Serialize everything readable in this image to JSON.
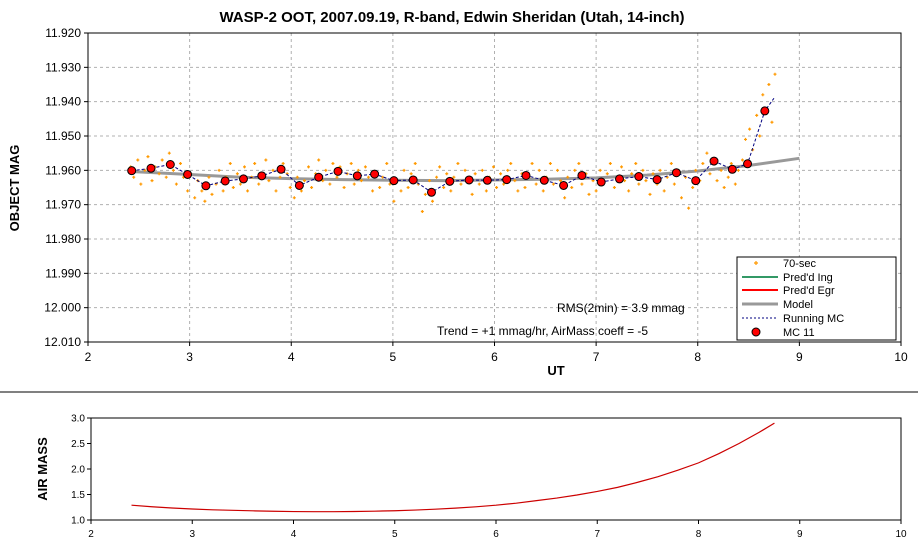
{
  "chart_data": [
    {
      "type": "scatter",
      "title": "WASP-2 OOT, 2007.09.19, R-band, Edwin Sheridan (Utah, 14-inch)",
      "xlabel": "UT",
      "ylabel": "OBJECT MAG",
      "xlim": [
        2,
        10
      ],
      "ylim": [
        11.92,
        12.01
      ],
      "y_inverted": true,
      "x_ticks": [
        "2",
        "3",
        "4",
        "5",
        "6",
        "7",
        "8",
        "9",
        "10"
      ],
      "y_ticks": [
        "11.920",
        "11.930",
        "11.940",
        "11.950",
        "11.960",
        "11.970",
        "11.980",
        "11.990",
        "12.000",
        "12.010"
      ],
      "grid": true,
      "legend_position": "bottom-right",
      "legend": [
        "70-sec",
        "Pred'd Ing",
        "Pred'd Egr",
        "Model",
        "Running MC",
        "MC 11"
      ],
      "annotations": [
        "RMS(2min) = 3.9 mmag",
        "Trend = +1 mmag/hr, AirMass coeff = -5"
      ],
      "colors": {
        "70-sec": "#ff9900",
        "Pred'd Ing": "#339966",
        "Pred'd Egr": "#ff0000",
        "Model": "#999999",
        "Running MC": "#000080",
        "MC 11": "#ff0000"
      },
      "series": [
        {
          "name": "MC 11",
          "x": [
            2.43,
            2.62,
            2.81,
            2.98,
            3.16,
            3.35,
            3.53,
            3.71,
            3.9,
            4.08,
            4.27,
            4.46,
            4.65,
            4.82,
            5.01,
            5.2,
            5.38,
            5.56,
            5.75,
            5.93,
            6.12,
            6.31,
            6.49,
            6.68,
            6.86,
            7.05,
            7.23,
            7.42,
            7.6,
            7.79,
            7.98,
            8.16,
            8.34,
            8.49,
            8.66
          ],
          "y": [
            11.9601,
            11.9594,
            11.9583,
            11.9612,
            11.9645,
            11.9631,
            11.9625,
            11.9616,
            11.9597,
            11.9644,
            11.962,
            11.9603,
            11.9616,
            11.9611,
            11.963,
            11.9628,
            11.9664,
            11.9632,
            11.9628,
            11.9629,
            11.9627,
            11.9615,
            11.9629,
            11.9644,
            11.9615,
            11.9634,
            11.9625,
            11.9618,
            11.9627,
            11.9607,
            11.963,
            11.9573,
            11.9597,
            11.9581,
            11.9427
          ]
        },
        {
          "name": "Model",
          "x": [
            2.4,
            3.0,
            3.5,
            4.0,
            4.5,
            5.0,
            5.5,
            6.0,
            6.5,
            7.0,
            7.5,
            8.0,
            8.5,
            9.0
          ],
          "y": [
            11.9603,
            11.9612,
            11.962,
            11.9624,
            11.9627,
            11.9629,
            11.963,
            11.9628,
            11.9626,
            11.9622,
            11.9614,
            11.9602,
            11.9586,
            11.9565
          ]
        },
        {
          "name": "70-sec",
          "x": [
            2.42,
            2.45,
            2.49,
            2.52,
            2.56,
            2.59,
            2.63,
            2.66,
            2.7,
            2.73,
            2.77,
            2.8,
            2.84,
            2.87,
            2.91,
            2.94,
            2.98,
            3.01,
            3.05,
            3.08,
            3.12,
            3.15,
            3.19,
            3.22,
            3.26,
            3.29,
            3.33,
            3.36,
            3.4,
            3.43,
            3.47,
            3.5,
            3.54,
            3.57,
            3.61,
            3.64,
            3.68,
            3.71,
            3.75,
            3.78,
            3.82,
            3.85,
            3.89,
            3.92,
            3.96,
            3.99,
            4.03,
            4.06,
            4.1,
            4.13,
            4.17,
            4.2,
            4.24,
            4.27,
            4.31,
            4.34,
            4.38,
            4.41,
            4.45,
            4.48,
            4.52,
            4.55,
            4.59,
            4.62,
            4.66,
            4.69,
            4.73,
            4.76,
            4.8,
            4.83,
            4.87,
            4.9,
            4.94,
            4.97,
            5.01,
            5.04,
            5.08,
            5.11,
            5.15,
            5.18,
            5.22,
            5.25,
            5.29,
            5.32,
            5.36,
            5.39,
            5.43,
            5.46,
            5.5,
            5.53,
            5.57,
            5.6,
            5.64,
            5.67,
            5.71,
            5.74,
            5.78,
            5.81,
            5.85,
            5.88,
            5.92,
            5.95,
            5.99,
            6.02,
            6.06,
            6.09,
            6.13,
            6.16,
            6.2,
            6.23,
            6.27,
            6.3,
            6.34,
            6.37,
            6.41,
            6.44,
            6.48,
            6.51,
            6.55,
            6.58,
            6.62,
            6.65,
            6.69,
            6.72,
            6.76,
            6.79,
            6.83,
            6.86,
            6.9,
            6.93,
            6.97,
            7.0,
            7.04,
            7.07,
            7.11,
            7.14,
            7.18,
            7.21,
            7.25,
            7.28,
            7.32,
            7.35,
            7.39,
            7.42,
            7.46,
            7.49,
            7.53,
            7.56,
            7.6,
            7.63,
            7.67,
            7.7,
            7.74,
            7.77,
            7.81,
            7.84,
            7.88,
            7.91,
            7.95,
            7.98,
            8.02,
            8.05,
            8.09,
            8.12,
            8.16,
            8.19,
            8.23,
            8.26,
            8.3,
            8.33,
            8.37,
            8.4,
            8.44,
            8.47,
            8.51,
            8.54,
            8.58,
            8.61,
            8.64,
            8.67,
            8.7,
            8.73,
            8.76
          ],
          "y": [
            11.959,
            11.962,
            11.957,
            11.964,
            11.96,
            11.956,
            11.963,
            11.959,
            11.961,
            11.957,
            11.962,
            11.955,
            11.96,
            11.964,
            11.958,
            11.962,
            11.966,
            11.961,
            11.968,
            11.963,
            11.966,
            11.969,
            11.962,
            11.967,
            11.964,
            11.96,
            11.966,
            11.962,
            11.958,
            11.965,
            11.961,
            11.964,
            11.959,
            11.966,
            11.962,
            11.958,
            11.964,
            11.961,
            11.957,
            11.963,
            11.96,
            11.966,
            11.962,
            11.958,
            11.961,
            11.965,
            11.968,
            11.962,
            11.966,
            11.963,
            11.959,
            11.965,
            11.961,
            11.957,
            11.963,
            11.96,
            11.964,
            11.958,
            11.962,
            11.959,
            11.965,
            11.961,
            11.958,
            11.964,
            11.96,
            11.963,
            11.959,
            11.962,
            11.966,
            11.961,
            11.965,
            11.962,
            11.958,
            11.964,
            11.969,
            11.963,
            11.966,
            11.96,
            11.965,
            11.961,
            11.958,
            11.964,
            11.972,
            11.967,
            11.963,
            11.969,
            11.962,
            11.959,
            11.965,
            11.961,
            11.966,
            11.962,
            11.958,
            11.964,
            11.96,
            11.963,
            11.967,
            11.961,
            11.964,
            11.96,
            11.966,
            11.962,
            11.959,
            11.965,
            11.961,
            11.964,
            11.96,
            11.958,
            11.963,
            11.966,
            11.961,
            11.965,
            11.962,
            11.958,
            11.964,
            11.96,
            11.966,
            11.962,
            11.958,
            11.964,
            11.96,
            11.963,
            11.968,
            11.962,
            11.965,
            11.96,
            11.958,
            11.964,
            11.961,
            11.967,
            11.963,
            11.966,
            11.96,
            11.964,
            11.961,
            11.958,
            11.965,
            11.962,
            11.959,
            11.963,
            11.966,
            11.961,
            11.958,
            11.964,
            11.96,
            11.963,
            11.967,
            11.961,
            11.964,
            11.96,
            11.966,
            11.962,
            11.958,
            11.964,
            11.96,
            11.968,
            11.962,
            11.971,
            11.965,
            11.96,
            11.963,
            11.958,
            11.955,
            11.961,
            11.957,
            11.963,
            11.96,
            11.965,
            11.962,
            11.958,
            11.964,
            11.96,
            11.957,
            11.951,
            11.948,
            11.954,
            11.944,
            11.95,
            11.938,
            11.942,
            11.935,
            11.946,
            11.932
          ]
        },
        {
          "name": "Running MC",
          "x": [
            2.43,
            2.62,
            2.81,
            2.98,
            3.16,
            3.35,
            3.53,
            3.71,
            3.9,
            4.08,
            4.27,
            4.46,
            4.65,
            4.82,
            5.01,
            5.2,
            5.38,
            5.56,
            5.75,
            5.93,
            6.12,
            6.31,
            6.49,
            6.68,
            6.86,
            7.05,
            7.23,
            7.42,
            7.6,
            7.79,
            7.98,
            8.16,
            8.34,
            8.49,
            8.66,
            8.75
          ],
          "y": [
            11.9601,
            11.9594,
            11.9583,
            11.9612,
            11.9645,
            11.9631,
            11.9625,
            11.9616,
            11.9597,
            11.9644,
            11.962,
            11.9603,
            11.9616,
            11.9611,
            11.963,
            11.9628,
            11.9664,
            11.9632,
            11.9628,
            11.9629,
            11.9627,
            11.9615,
            11.9629,
            11.9644,
            11.9615,
            11.9634,
            11.9625,
            11.9618,
            11.9627,
            11.9607,
            11.963,
            11.9573,
            11.9597,
            11.9581,
            11.9427,
            11.939
          ]
        }
      ]
    },
    {
      "type": "line",
      "xlabel": "",
      "ylabel": "AIR MASS",
      "xlim": [
        2,
        10
      ],
      "ylim": [
        1.0,
        3.0
      ],
      "x_ticks": [
        "2",
        "3",
        "4",
        "5",
        "6",
        "7",
        "8",
        "9",
        "10"
      ],
      "y_ticks": [
        "1.0",
        "1.5",
        "2.0",
        "2.5",
        "3.0"
      ],
      "grid": false,
      "colors": {
        "line": "#cc0000"
      },
      "series": [
        {
          "x": [
            2.4,
            2.6,
            2.8,
            3.0,
            3.2,
            3.4,
            3.6,
            3.8,
            4.0,
            4.2,
            4.4,
            4.6,
            4.8,
            5.0,
            5.2,
            5.4,
            5.6,
            5.8,
            6.0,
            6.2,
            6.4,
            6.6,
            6.8,
            7.0,
            7.2,
            7.4,
            7.6,
            7.8,
            8.0,
            8.2,
            8.4,
            8.6,
            8.75
          ],
          "y": [
            1.29,
            1.26,
            1.235,
            1.215,
            1.2,
            1.19,
            1.18,
            1.172,
            1.165,
            1.163,
            1.163,
            1.166,
            1.173,
            1.182,
            1.195,
            1.212,
            1.233,
            1.259,
            1.29,
            1.33,
            1.38,
            1.43,
            1.49,
            1.56,
            1.64,
            1.74,
            1.85,
            1.98,
            2.12,
            2.3,
            2.5,
            2.72,
            2.9
          ]
        }
      ]
    }
  ]
}
